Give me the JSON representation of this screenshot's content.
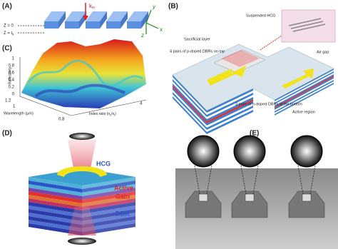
{
  "panels": {
    "a": {
      "label": "(A)",
      "k": "k",
      "k_sub": "in",
      "z0": "Z = 0",
      "zt": "Z = t",
      "zt_sub": "g",
      "axis_y": "y",
      "axis_x": "x",
      "axis_z": "z"
    },
    "c": {
      "label": "(C)",
      "z_label": "Reflectivity",
      "z_ticks": [
        "1",
        "0.8",
        "0.6",
        "0.4",
        "0.2",
        "0"
      ],
      "x_label": "Wavelength (μm)",
      "x_ticks": [
        "1.2",
        "1",
        "0.8"
      ],
      "y_label_parts": [
        "Index ratio (n",
        "h",
        "/n",
        "l",
        ")"
      ],
      "y_ticks": [
        "4"
      ]
    },
    "b": {
      "label": "(B)",
      "suspended": "Suspended HCG",
      "sacrificial": "Sacrificial layer",
      "top_dbr": "4 pairs of p-doped DBRs on top",
      "air_gap": "Air gap",
      "bottom_dbr": "3 pairs of n-doped DBRs at the bottom",
      "active": "Active region"
    },
    "d": {
      "label": "(D)",
      "hcg": "HCG",
      "active": "Active",
      "gain": "Gain",
      "dbr": "DBR"
    },
    "e": {
      "label": "(E)"
    }
  }
}
